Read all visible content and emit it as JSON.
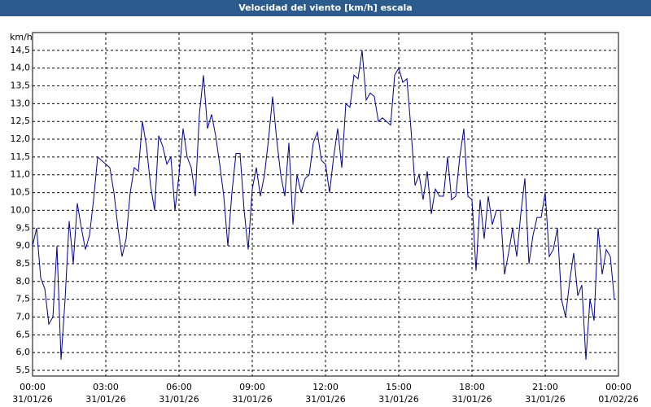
{
  "chart_data": {
    "type": "line",
    "title": "Velocidad del viento [km/h] escala",
    "y_unit": "km/h",
    "x": [
      0,
      10,
      20,
      30,
      40,
      50,
      60,
      70,
      80,
      90,
      100,
      110,
      120,
      130,
      140,
      150,
      160,
      170,
      180,
      190,
      200,
      210,
      220,
      230,
      240,
      250,
      260,
      270,
      280,
      290,
      300,
      310,
      320,
      330,
      340,
      350,
      360,
      370,
      380,
      390,
      400,
      410,
      420,
      430,
      440,
      450,
      460,
      470,
      480,
      490,
      500,
      510,
      520,
      530,
      540,
      550,
      560,
      570,
      580,
      590,
      600,
      610,
      620,
      630,
      640,
      650,
      660,
      670,
      680,
      690,
      700,
      710,
      720,
      730,
      740,
      750,
      760,
      770,
      780,
      790,
      800,
      810,
      820,
      830,
      840,
      850,
      860,
      870,
      880,
      890,
      900,
      910,
      920,
      930,
      940,
      950,
      960,
      970,
      980,
      990,
      1000,
      1010,
      1020,
      1030,
      1040,
      1050,
      1060,
      1070,
      1080,
      1090,
      1100,
      1110,
      1120,
      1130,
      1140,
      1150,
      1160,
      1170,
      1180,
      1190,
      1200,
      1210,
      1220,
      1230,
      1240,
      1250,
      1260,
      1270,
      1280,
      1290,
      1300,
      1310,
      1320,
      1330,
      1340,
      1350,
      1360,
      1370,
      1380,
      1390,
      1400,
      1410,
      1420,
      1430
    ],
    "series": [
      {
        "name": "Velocidad del viento",
        "color": "#00008b",
        "values": [
          9.0,
          9.5,
          8.1,
          7.8,
          6.8,
          7.0,
          9.0,
          5.8,
          7.5,
          9.7,
          8.5,
          10.2,
          9.5,
          8.9,
          9.3,
          10.3,
          11.5,
          11.4,
          11.3,
          11.2,
          10.5,
          9.5,
          8.7,
          9.2,
          10.5,
          11.2,
          11.1,
          12.5,
          11.8,
          10.7,
          10.0,
          12.1,
          11.8,
          11.3,
          11.5,
          10.0,
          11.0,
          12.3,
          11.5,
          11.2,
          10.4,
          12.7,
          13.8,
          12.3,
          12.7,
          12.1,
          11.3,
          10.4,
          9.0,
          10.5,
          11.6,
          11.6,
          10.0,
          8.9,
          10.6,
          11.2,
          10.4,
          11.0,
          12.0,
          13.2,
          12.0,
          11.0,
          10.4,
          11.9,
          9.6,
          11.0,
          10.5,
          10.9,
          11.0,
          11.9,
          12.2,
          11.4,
          11.3,
          10.5,
          11.5,
          12.3,
          11.2,
          13.0,
          12.9,
          13.8,
          13.7,
          14.5,
          13.1,
          13.3,
          13.2,
          12.5,
          12.6,
          12.5,
          12.4,
          13.8,
          14.0,
          13.6,
          13.7,
          12.3,
          10.7,
          11.0,
          10.3,
          11.1,
          9.9,
          10.6,
          10.4,
          10.4,
          11.5,
          10.3,
          10.4,
          11.5,
          12.3,
          10.4,
          10.3,
          8.3,
          10.3,
          9.2,
          10.4,
          9.6,
          10.0,
          10.0,
          8.2,
          8.8,
          9.5,
          8.7,
          9.9,
          10.9,
          8.5,
          9.3,
          9.8,
          9.8,
          10.5,
          8.7,
          8.9,
          9.5,
          7.5,
          7.0,
          8.0,
          8.8,
          7.6,
          7.9,
          5.8,
          7.5,
          6.9,
          9.5,
          8.2,
          8.9,
          8.7,
          7.5
        ]
      }
    ],
    "xlim": [
      0,
      1440
    ],
    "xticks": [
      {
        "value": 0,
        "label": "00:00"
      },
      {
        "value": 180,
        "label": "03:00"
      },
      {
        "value": 360,
        "label": "06:00"
      },
      {
        "value": 540,
        "label": "09:00"
      },
      {
        "value": 720,
        "label": "12:00"
      },
      {
        "value": 900,
        "label": "15:00"
      },
      {
        "value": 1080,
        "label": "18:00"
      },
      {
        "value": 1260,
        "label": "21:00"
      },
      {
        "value": 1440,
        "label": "00:00"
      }
    ],
    "xtick_dates": [
      "31/01/26",
      "31/01/26",
      "31/01/26",
      "31/01/26",
      "31/01/26",
      "31/01/26",
      "31/01/26",
      "31/01/26",
      "01/02/26"
    ],
    "ylim": [
      5.34,
      15.0
    ],
    "yticks": [
      {
        "value": 5.5,
        "label": "5,5"
      },
      {
        "value": 6.0,
        "label": "6,0"
      },
      {
        "value": 6.5,
        "label": "6,5"
      },
      {
        "value": 7.0,
        "label": "7,0"
      },
      {
        "value": 7.5,
        "label": "7,5"
      },
      {
        "value": 8.0,
        "label": "8,0"
      },
      {
        "value": 8.5,
        "label": "8,5"
      },
      {
        "value": 9.0,
        "label": "9,0"
      },
      {
        "value": 9.5,
        "label": "9,5"
      },
      {
        "value": 10.0,
        "label": "10,0"
      },
      {
        "value": 10.5,
        "label": "10,5"
      },
      {
        "value": 11.0,
        "label": "11,0"
      },
      {
        "value": 11.5,
        "label": "11,5"
      },
      {
        "value": 12.0,
        "label": "12,0"
      },
      {
        "value": 12.5,
        "label": "12,5"
      },
      {
        "value": 13.0,
        "label": "13,0"
      },
      {
        "value": 13.5,
        "label": "13,5"
      },
      {
        "value": 14.0,
        "label": "14,0"
      },
      {
        "value": 14.5,
        "label": "14,5"
      }
    ],
    "grid": true
  }
}
